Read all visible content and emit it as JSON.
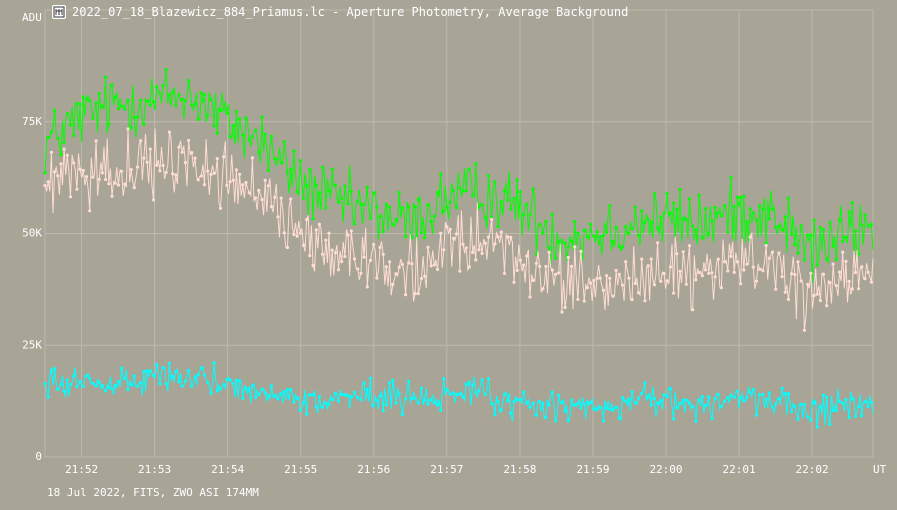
{
  "window": {
    "title": "2022_07_18_Blazewicz_884_Priamus.lc - Aperture Photometry, Average Background",
    "icon": "photometry-app-icon"
  },
  "footer": {
    "caption": "18 Jul 2022, FITS, ZWO ASI 174MM"
  },
  "colors": {
    "background": "#a8a496",
    "grid": "#bdb9ad",
    "series_green": "#00ff00",
    "series_pink": "#ffdcd4",
    "series_cyan": "#00ffff"
  },
  "chart_data": {
    "type": "line",
    "ylabel": "ADU",
    "xlabel": "UT",
    "ylim": [
      0,
      100000
    ],
    "y_ticks": [
      {
        "value": 0,
        "label": "0"
      },
      {
        "value": 25000,
        "label": "25K"
      },
      {
        "value": 50000,
        "label": "50K"
      },
      {
        "value": 75000,
        "label": "75K"
      }
    ],
    "xlim": [
      "21:51:30",
      "22:02:50"
    ],
    "x_ticks": [
      "21:52",
      "21:53",
      "21:54",
      "21:55",
      "21:56",
      "21:57",
      "21:58",
      "21:59",
      "22:00",
      "22:01",
      "22:02"
    ],
    "grid": true,
    "markers": true,
    "series": [
      {
        "color": "#00ff00",
        "x": [
          "21:51:30",
          "21:52:00",
          "21:52:30",
          "21:53:00",
          "21:53:30",
          "21:54:00",
          "21:54:30",
          "21:55:00",
          "21:55:30",
          "21:56:00",
          "21:56:30",
          "21:57:00",
          "21:57:30",
          "21:58:00",
          "21:58:30",
          "21:59:00",
          "21:59:30",
          "22:00:00",
          "22:00:30",
          "22:01:00",
          "22:01:30",
          "22:02:00",
          "22:02:30",
          "22:02:50"
        ],
        "values": [
          70000,
          76000,
          79000,
          80000,
          81000,
          75000,
          70000,
          61000,
          57000,
          55000,
          52000,
          58000,
          59000,
          56000,
          49000,
          50000,
          52000,
          53000,
          52000,
          55000,
          54000,
          46000,
          50000,
          51000
        ]
      },
      {
        "color": "#ffdcd4",
        "x": [
          "21:51:30",
          "21:52:00",
          "21:52:30",
          "21:53:00",
          "21:53:30",
          "21:54:00",
          "21:54:30",
          "21:55:00",
          "21:55:30",
          "21:56:00",
          "21:56:30",
          "21:57:00",
          "21:57:30",
          "21:58:00",
          "21:58:30",
          "21:59:00",
          "21:59:30",
          "22:00:00",
          "22:00:30",
          "22:01:00",
          "22:01:30",
          "22:02:00",
          "22:02:30",
          "22:02:50"
        ],
        "values": [
          60000,
          63000,
          65000,
          64000,
          67000,
          62000,
          58000,
          50000,
          46000,
          44000,
          41000,
          48000,
          47000,
          45000,
          39000,
          37000,
          40000,
          42000,
          40000,
          44000,
          43000,
          34000,
          40000,
          41000
        ]
      },
      {
        "color": "#00ffff",
        "x": [
          "21:51:30",
          "21:52:00",
          "21:52:30",
          "21:53:00",
          "21:53:30",
          "21:54:00",
          "21:54:30",
          "21:55:00",
          "21:55:30",
          "21:56:00",
          "21:56:30",
          "21:57:00",
          "21:57:30",
          "21:58:00",
          "21:58:30",
          "21:59:00",
          "21:59:30",
          "22:00:00",
          "22:00:30",
          "22:01:00",
          "22:01:30",
          "22:02:00",
          "22:02:30",
          "22:02:50"
        ],
        "values": [
          16000,
          17000,
          17000,
          17500,
          17000,
          16000,
          15000,
          13000,
          13000,
          13500,
          13000,
          14000,
          14000,
          12000,
          11000,
          11500,
          12000,
          12000,
          11500,
          13000,
          12500,
          10000,
          12000,
          11000
        ]
      }
    ]
  }
}
